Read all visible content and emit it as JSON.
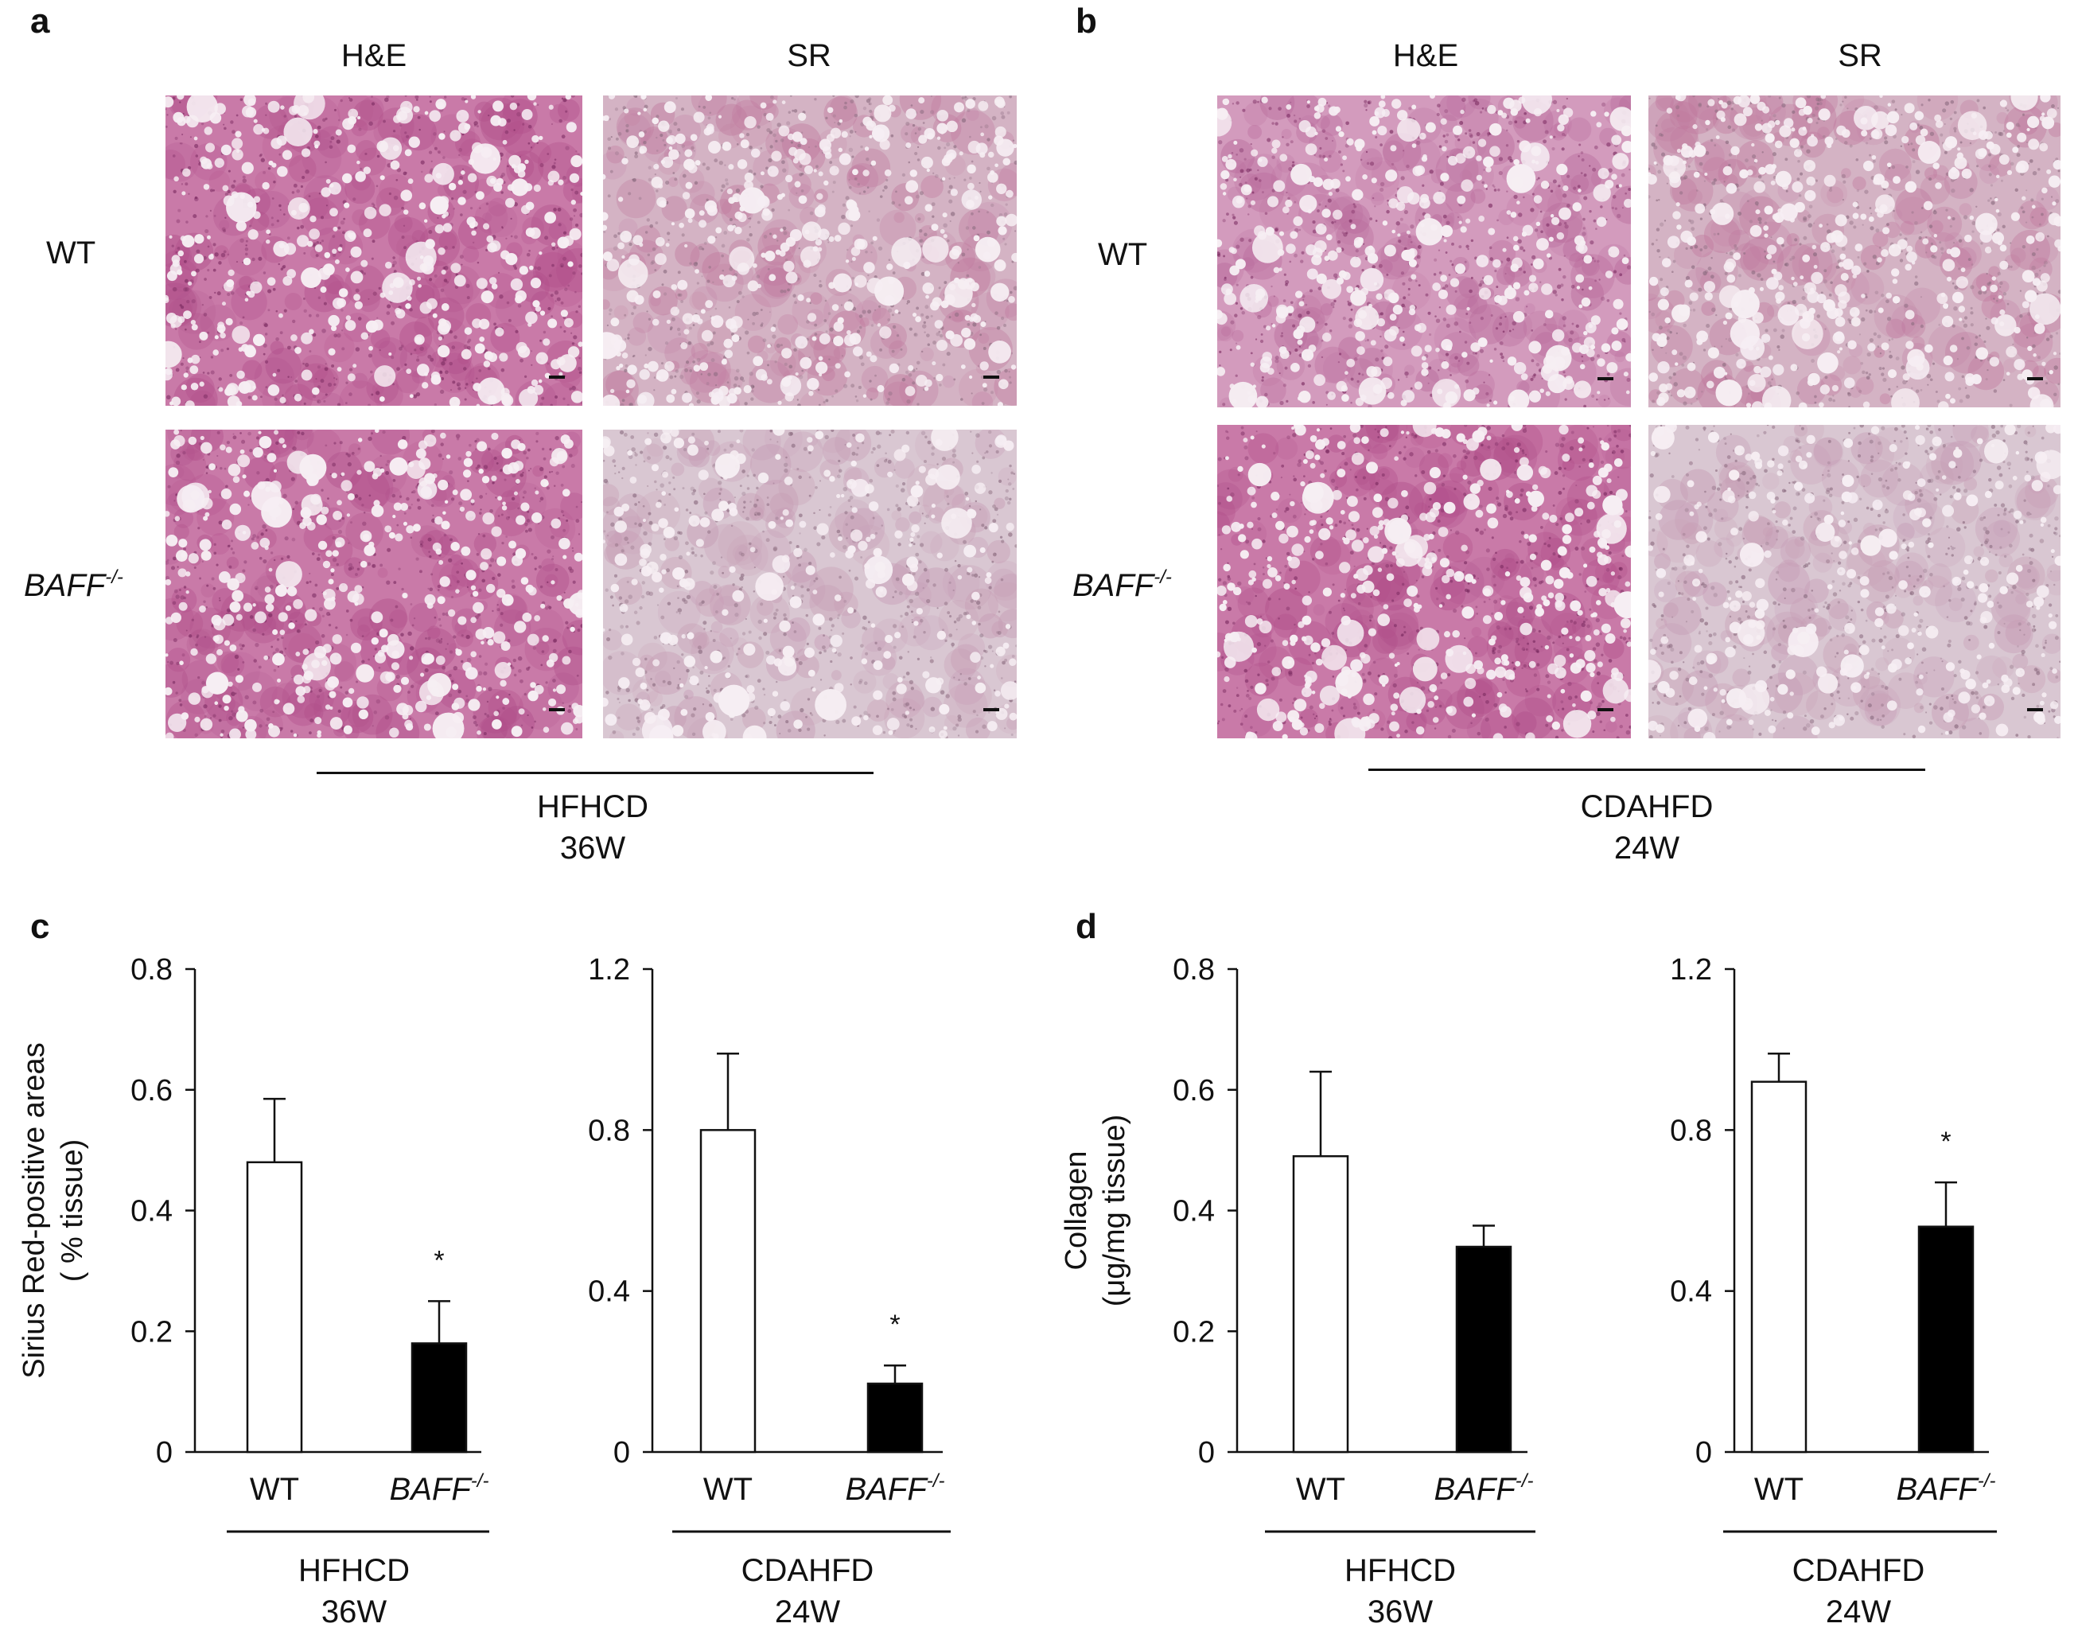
{
  "panels": {
    "a": {
      "label": "a",
      "col_headers": [
        "H&E",
        "SR"
      ],
      "rows": [
        {
          "label": "WT",
          "sup": ""
        },
        {
          "label": "BAFF",
          "sup": "-/-"
        }
      ],
      "condition": [
        "HFHCD",
        "36W"
      ]
    },
    "b": {
      "label": "b",
      "col_headers": [
        "H&E",
        "SR"
      ],
      "rows": [
        {
          "label": "WT",
          "sup": ""
        },
        {
          "label": "BAFF",
          "sup": "-/-"
        }
      ],
      "condition": [
        "CDAHFD",
        "24W"
      ]
    },
    "c": {
      "label": "c"
    },
    "d": {
      "label": "d"
    }
  },
  "colors": {
    "he_stain": "#c97aa8",
    "sr_stain": "#d4b3c4",
    "bar_wt": "#ffffff",
    "bar_ko": "#000000"
  },
  "chart_data": [
    {
      "type": "bar",
      "panel": "c",
      "ylabel": [
        "Sirius Red-positive areas",
        "( % tissue)"
      ],
      "categories": [
        "WT",
        "BAFF"
      ],
      "category_sup": [
        "",
        "-/-"
      ],
      "values": [
        0.48,
        0.18
      ],
      "errors": [
        0.105,
        0.07
      ],
      "significance": [
        "",
        "*"
      ],
      "ylim": [
        0,
        0.8
      ],
      "yticks": [
        "0",
        "0.2",
        "0.4",
        "0.6",
        "0.8"
      ],
      "ytick_values": [
        0,
        0.2,
        0.4,
        0.6,
        0.8
      ],
      "condition": [
        "HFHCD",
        "36W"
      ]
    },
    {
      "type": "bar",
      "panel": "c",
      "categories": [
        "WT",
        "BAFF"
      ],
      "category_sup": [
        "",
        "-/-"
      ],
      "values": [
        0.8,
        0.17
      ],
      "errors": [
        0.19,
        0.045
      ],
      "significance": [
        "",
        "*"
      ],
      "ylim": [
        0,
        1.2
      ],
      "yticks": [
        "0",
        "0.4",
        "0.8",
        "1.2"
      ],
      "ytick_values": [
        0,
        0.4,
        0.8,
        1.2
      ],
      "condition": [
        "CDAHFD",
        "24W"
      ]
    },
    {
      "type": "bar",
      "panel": "d",
      "ylabel": [
        "Collagen",
        "(μg/mg tissue)"
      ],
      "categories": [
        "WT",
        "BAFF"
      ],
      "category_sup": [
        "",
        "-/-"
      ],
      "values": [
        0.49,
        0.34
      ],
      "errors": [
        0.14,
        0.035
      ],
      "significance": [
        "",
        ""
      ],
      "ylim": [
        0,
        0.8
      ],
      "yticks": [
        "0",
        "0.2",
        "0.4",
        "0.6",
        "0.8"
      ],
      "ytick_values": [
        0,
        0.2,
        0.4,
        0.6,
        0.8
      ],
      "condition": [
        "HFHCD",
        "36W"
      ]
    },
    {
      "type": "bar",
      "panel": "d",
      "categories": [
        "WT",
        "BAFF"
      ],
      "category_sup": [
        "",
        "-/-"
      ],
      "values": [
        0.92,
        0.56
      ],
      "errors": [
        0.07,
        0.11
      ],
      "significance": [
        "",
        "*"
      ],
      "ylim": [
        0,
        1.2
      ],
      "yticks": [
        "0",
        "0.4",
        "0.8",
        "1.2"
      ],
      "ytick_values": [
        0,
        0.4,
        0.8,
        1.2
      ],
      "condition": [
        "CDAHFD",
        "24W"
      ]
    }
  ]
}
